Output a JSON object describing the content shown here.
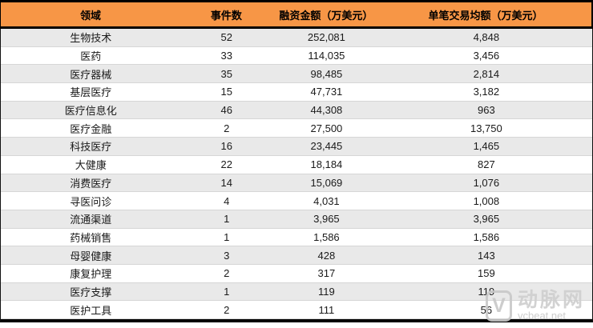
{
  "chart_data": {
    "type": "table",
    "columns": [
      "领域",
      "事件数",
      "融资金额（万美元）",
      "单笔交易均额（万美元）"
    ],
    "rows": [
      [
        "生物技术",
        "52",
        "252,081",
        "4,848"
      ],
      [
        "医药",
        "33",
        "114,035",
        "3,456"
      ],
      [
        "医疗器械",
        "35",
        "98,485",
        "2,814"
      ],
      [
        "基层医疗",
        "15",
        "47,731",
        "3,182"
      ],
      [
        "医疗信息化",
        "46",
        "44,308",
        "963"
      ],
      [
        "医疗金融",
        "2",
        "27,500",
        "13,750"
      ],
      [
        "科技医疗",
        "16",
        "23,445",
        "1,465"
      ],
      [
        "大健康",
        "22",
        "18,184",
        "827"
      ],
      [
        "消费医疗",
        "14",
        "15,069",
        "1,076"
      ],
      [
        "寻医问诊",
        "4",
        "4,031",
        "1,008"
      ],
      [
        "流通渠道",
        "1",
        "3,965",
        "3,965"
      ],
      [
        "药械销售",
        "1",
        "1,586",
        "1,586"
      ],
      [
        "母婴健康",
        "3",
        "428",
        "143"
      ],
      [
        "康复护理",
        "2",
        "317",
        "159"
      ],
      [
        "医疗支撑",
        "1",
        "119",
        "119"
      ],
      [
        "医护工具",
        "2",
        "111",
        "56"
      ]
    ],
    "layout": {
      "header_bg": "#F79646",
      "row_alt_bg": "#E9E9E9",
      "grid": "horizontal-stripes",
      "alignment": "center"
    }
  },
  "watermark": {
    "logo_letter": "V",
    "name": "动脉网",
    "site": "vcbeat.net"
  },
  "colors": {
    "header_bg": "#F79646",
    "row_alt": "#E9E9E9",
    "border": "#000000",
    "watermark": "#C9C9C9"
  }
}
